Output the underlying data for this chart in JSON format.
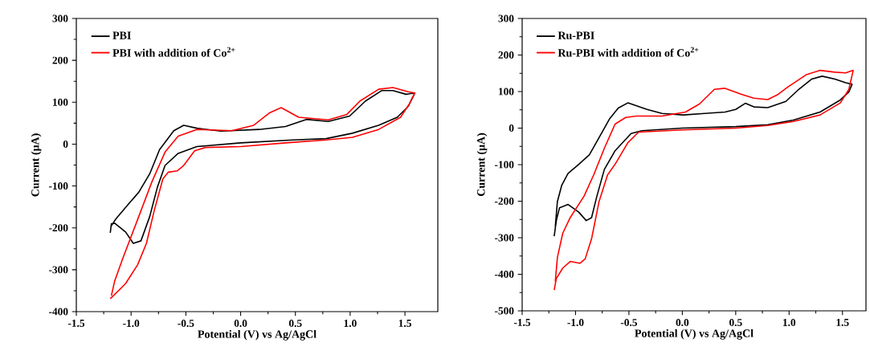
{
  "chart_data": [
    {
      "type": "line",
      "xlabel": "Potential (V) vs Ag/AgCl",
      "ylabel": "Current (μA)",
      "legend": "top left",
      "xlim": [
        -1.5,
        1.8
      ],
      "ylim": [
        -400,
        300
      ],
      "xticks": [
        -1.5,
        {
          "value": -1,
          "label": "-1.0"
        },
        -0.5,
        {
          "value": 0,
          "label": "0.0"
        },
        0.5,
        {
          "value": 1,
          "label": "1.0"
        },
        1.5
      ],
      "yticks": [
        -400,
        -300,
        -200,
        -100,
        0,
        100,
        200,
        300
      ],
      "series": [
        {
          "name": "PBI",
          "color": "#000000",
          "x": [
            -1.19,
            -1.18,
            -1.15,
            -1.05,
            -0.98,
            -0.91,
            -0.83,
            -0.76,
            -0.69,
            -0.57,
            -0.4,
            0,
            0.48,
            0.78,
            1.02,
            1.26,
            1.43,
            1.53,
            1.59,
            1.51,
            1.39,
            1.29,
            1.14,
            0.995,
            0.8,
            0.6,
            0.41,
            0.17,
            -0.18,
            -0.4,
            -0.52,
            -0.61,
            -0.74,
            -0.83,
            -0.93,
            -1.05,
            -1.14,
            -1.18
          ],
          "values": [
            -212,
            -190,
            -189,
            -210,
            -237,
            -231,
            -173,
            -103,
            -51,
            -22,
            -6,
            3,
            10,
            13,
            26,
            45,
            64,
            90,
            122,
            119,
            128,
            128,
            103,
            67,
            54,
            59,
            42,
            35,
            31,
            38,
            45,
            32,
            -13,
            -71,
            -115,
            -151,
            -179,
            -195
          ]
        },
        {
          "name": "PBI with addition of Co$^{2+}$",
          "color": "#ff0000",
          "x": [
            -1.19,
            -1.15,
            -1.05,
            -0.94,
            -0.86,
            -0.79,
            -0.71,
            -0.66,
            -0.58,
            -0.52,
            -0.42,
            -0.32,
            0,
            0.41,
            0.78,
            1.02,
            1.26,
            1.46,
            1.54,
            1.59,
            1.53,
            1.39,
            1.26,
            1.09,
            0.97,
            0.8,
            0.53,
            0.37,
            0.26,
            0.12,
            -0.08,
            -0.4,
            -0.57,
            -0.69,
            -0.81,
            -0.93,
            -1.08,
            -1.15,
            -1.18
          ],
          "values": [
            -369,
            -359,
            -333,
            -288,
            -237,
            -160,
            -83,
            -67,
            -64,
            -51,
            -16,
            -8,
            -6,
            3,
            10,
            16,
            35,
            64,
            96,
            122,
            125,
            135,
            131,
            103,
            71,
            58,
            64,
            87,
            74,
            45,
            32,
            35,
            19,
            -19,
            -90,
            -173,
            -276,
            -327,
            -362
          ]
        }
      ]
    },
    {
      "type": "line",
      "xlabel": "Potential (V) vs Ag/AgCl",
      "ylabel": "Current (μA)",
      "legend": "top left",
      "xlim": [
        -1.5,
        1.72
      ],
      "ylim": [
        -500,
        300
      ],
      "xticks": [
        -1.5,
        {
          "value": -1,
          "label": "-1.0"
        },
        -0.5,
        {
          "value": 0,
          "label": "0.0"
        },
        0.5,
        {
          "value": 1,
          "label": "1.0"
        },
        1.5
      ],
      "yticks": [
        -500,
        -400,
        -300,
        -200,
        -100,
        0,
        100,
        200,
        300
      ],
      "series": [
        {
          "name": "Ru-PBI",
          "color": "#000000",
          "x": [
            -1.2,
            -1.18,
            -1.15,
            -1.07,
            -0.97,
            -0.9,
            -0.85,
            -0.8,
            -0.73,
            -0.63,
            -0.48,
            -0.38,
            0,
            0.5,
            0.8,
            1.04,
            1.29,
            1.48,
            1.56,
            1.59,
            1.53,
            1.43,
            1.31,
            1.21,
            1.09,
            0.97,
            0.8,
            0.67,
            0.59,
            0.5,
            0.4,
            0.21,
            0.01,
            -0.19,
            -0.33,
            -0.51,
            -0.6,
            -0.68,
            -0.78,
            -0.87,
            -0.97,
            -1.07,
            -1.13,
            -1.17,
            -1.19
          ],
          "values": [
            -296,
            -253,
            -218,
            -209,
            -230,
            -253,
            -245,
            -186,
            -113,
            -62,
            -15,
            -7,
            0,
            4,
            9,
            22,
            44,
            77,
            99,
            120,
            124,
            134,
            142,
            134,
            106,
            73,
            56,
            58,
            68,
            51,
            44,
            40,
            36,
            40,
            51,
            69,
            55,
            26,
            -26,
            -73,
            -99,
            -124,
            -157,
            -201,
            -270
          ]
        },
        {
          "name": "Ru-PBI with addition of Co$^{2+}$",
          "color": "#ff0000",
          "x": [
            -1.2,
            -1.18,
            -1.12,
            -1.05,
            -0.96,
            -0.91,
            -0.85,
            -0.78,
            -0.7,
            -0.63,
            -0.51,
            -0.41,
            0,
            0.5,
            0.8,
            1.04,
            1.29,
            1.48,
            1.56,
            1.6,
            1.53,
            1.43,
            1.29,
            1.16,
            0.99,
            0.89,
            0.8,
            0.67,
            0.55,
            0.4,
            0.3,
            0.16,
            0.03,
            -0.19,
            -0.43,
            -0.53,
            -0.63,
            -0.73,
            -0.83,
            -0.92,
            -1.05,
            -1.12,
            -1.17,
            -1.19
          ],
          "values": [
            -443,
            -412,
            -383,
            -365,
            -370,
            -358,
            -303,
            -201,
            -128,
            -99,
            -40,
            -11,
            -5,
            0,
            7,
            18,
            36,
            69,
            106,
            158,
            151,
            153,
            158,
            146,
            113,
            91,
            78,
            82,
            93,
            109,
            106,
            66,
            44,
            33,
            33,
            29,
            11,
            -55,
            -128,
            -186,
            -245,
            -288,
            -354,
            -420
          ]
        }
      ]
    }
  ]
}
